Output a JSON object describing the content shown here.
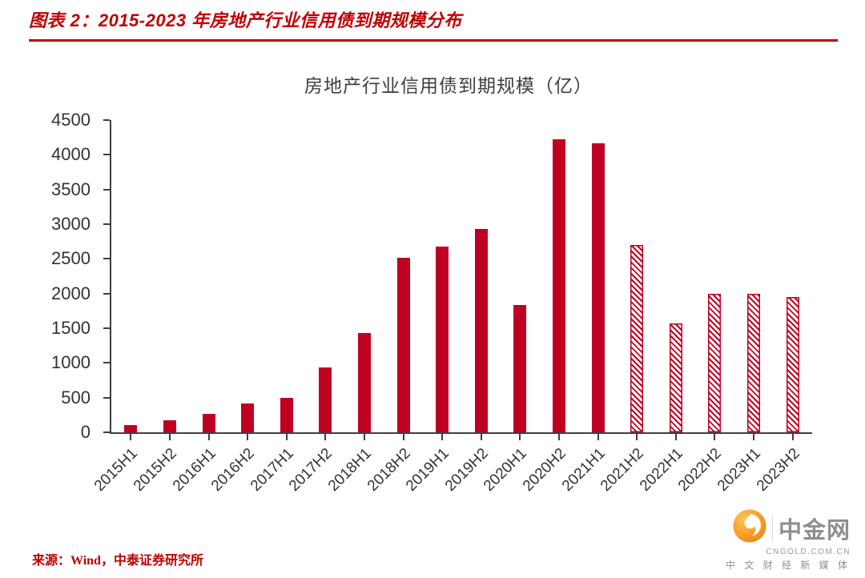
{
  "header": {
    "title": "图表 2：2015-2023 年房地产行业信用债到期规模分布"
  },
  "chart_data": {
    "type": "bar",
    "title": "房地产行业信用债到期规模（亿）",
    "categories": [
      "2015H1",
      "2015H2",
      "2016H1",
      "2016H2",
      "2017H1",
      "2017H2",
      "2018H1",
      "2018H2",
      "2019H1",
      "2019H2",
      "2020H1",
      "2020H2",
      "2021H1",
      "2021H2",
      "2022H1",
      "2022H2",
      "2023H1",
      "2023H2"
    ],
    "values": [
      100,
      170,
      260,
      420,
      500,
      940,
      1430,
      2520,
      2680,
      2930,
      1830,
      4220,
      4170,
      2700,
      1570,
      2000,
      2000,
      1950
    ],
    "forecast_from_index": 13,
    "forecast_style": "hatched",
    "ylim": [
      0,
      4500
    ],
    "yticks": [
      0,
      500,
      1000,
      1500,
      2000,
      2500,
      3000,
      3500,
      4000,
      4500
    ],
    "xlabel": "",
    "ylabel": "",
    "grid": false,
    "legend": "none"
  },
  "footer": {
    "source": "来源：Wind，中泰证券研究所"
  },
  "watermark": {
    "brand": "中金网",
    "domain": "CNGOLD.COM.CN",
    "tagline": "中 文 财 经 新 媒 体"
  },
  "colors": {
    "accent_red": "#C00000",
    "bar": "#C00023",
    "logo_orange": "#F08300"
  }
}
